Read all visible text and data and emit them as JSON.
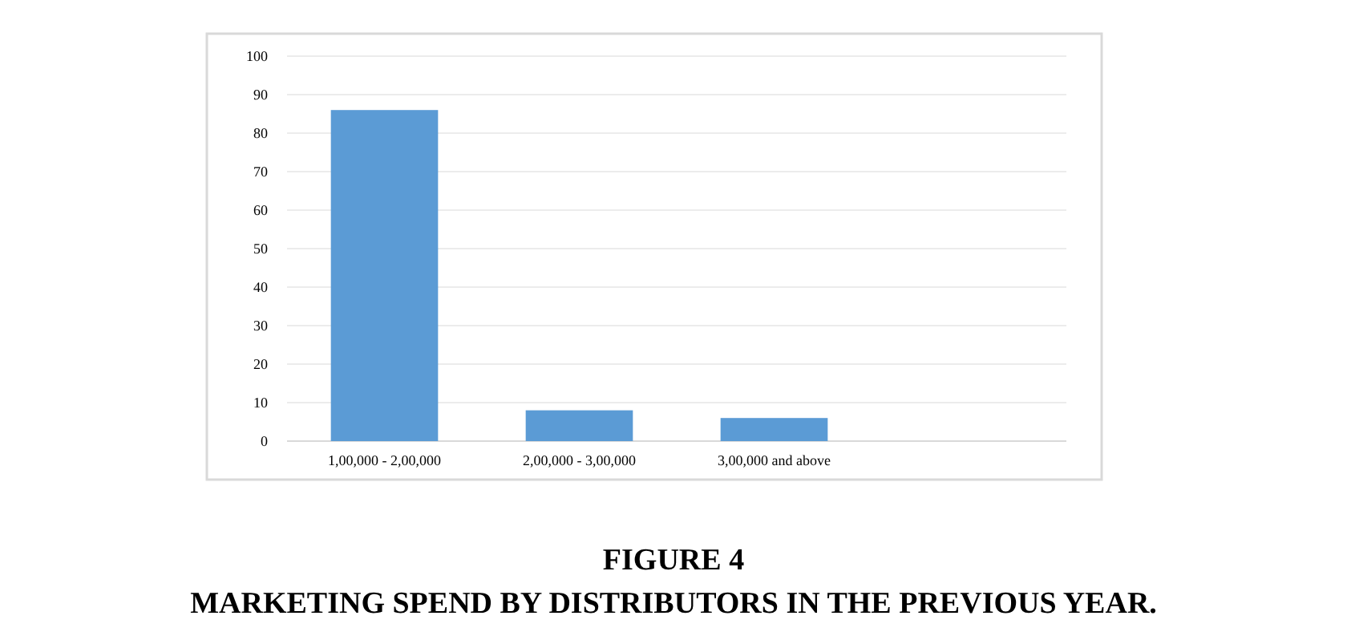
{
  "chart_data": {
    "type": "bar",
    "title": "FIGURE 4",
    "subtitle": "MARKETING SPEND BY DISTRIBUTORS IN THE PREVIOUS YEAR.",
    "categories": [
      "1,00,000 - 2,00,000",
      "2,00,000 - 3,00,000",
      "3,00,000 and above",
      null
    ],
    "values": [
      86,
      8,
      6,
      null
    ],
    "color": "#5b9bd5",
    "ylim": [
      0,
      100
    ],
    "yticks": [
      0,
      10,
      20,
      30,
      40,
      50,
      60,
      70,
      80,
      90,
      100
    ],
    "grid": "y"
  }
}
